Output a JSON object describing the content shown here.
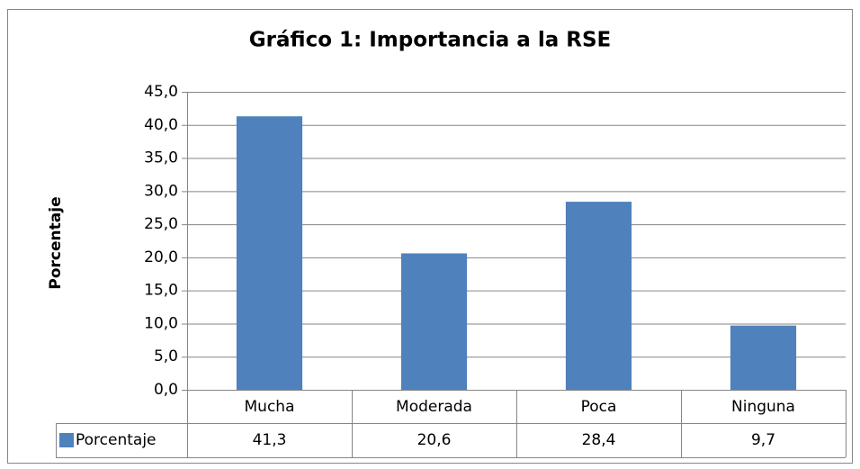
{
  "chart_data": {
    "type": "bar",
    "title": "Gráfico 1: Importancia a la RSE",
    "y_label": "Porcentaje",
    "categories": [
      "Mucha",
      "Moderada",
      "Poca",
      "Ninguna"
    ],
    "series": [
      {
        "name": "Porcentaje",
        "color": "#4f81bd",
        "values": [
          41.3,
          20.6,
          28.4,
          9.7
        ],
        "value_labels": [
          "41,3",
          "20,6",
          "28,4",
          "9,7"
        ]
      }
    ],
    "ylim": [
      0,
      45
    ],
    "yticks": [
      {
        "value": 0,
        "label": "0,0"
      },
      {
        "value": 5,
        "label": "5,0"
      },
      {
        "value": 10,
        "label": "10,0"
      },
      {
        "value": 15,
        "label": "15,0"
      },
      {
        "value": 20,
        "label": "20,0"
      },
      {
        "value": 25,
        "label": "25,0"
      },
      {
        "value": 30,
        "label": "30,0"
      },
      {
        "value": 35,
        "label": "35,0"
      },
      {
        "value": 40,
        "label": "40,0"
      },
      {
        "value": 45,
        "label": "45,0"
      }
    ],
    "grid": true,
    "data_table": true
  }
}
